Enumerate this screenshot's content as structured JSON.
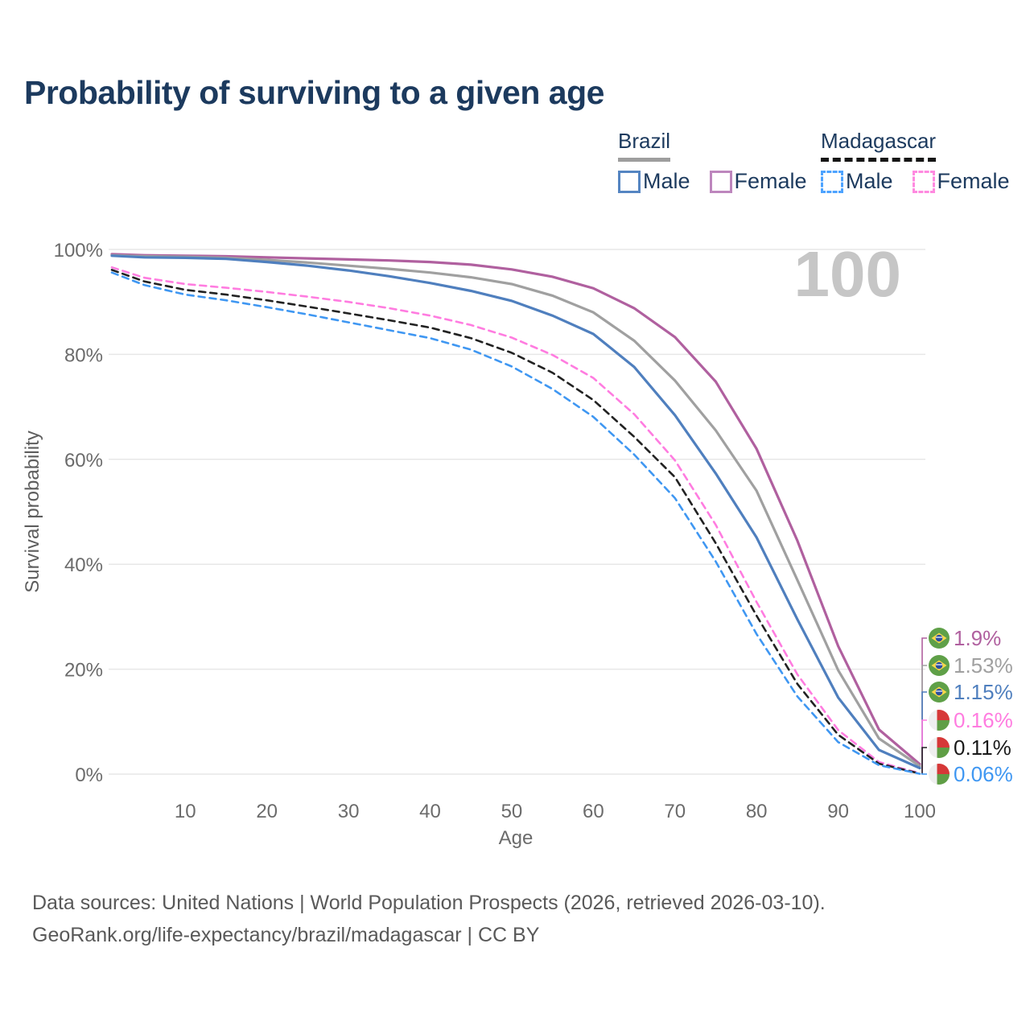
{
  "title": "Probability of surviving to a given age",
  "legend": {
    "groups": [
      {
        "name": "Brazil",
        "style": "solid",
        "underline_color": "#9e9e9e",
        "items": [
          {
            "label": "Male",
            "color": "#5585c2"
          },
          {
            "label": "Female",
            "color": "#bd86bd"
          }
        ]
      },
      {
        "name": "Madagascar",
        "style": "dashed",
        "underline_color": "#161616",
        "items": [
          {
            "label": "Male",
            "color": "#4da3ff"
          },
          {
            "label": "Female",
            "color": "#ff8ae0"
          }
        ]
      }
    ]
  },
  "footer": {
    "line1": "Data sources: United Nations | World Population Prospects (2026, retrieved 2026-03-10).",
    "line2": "GeoRank.org/life-expectancy/brazil/madagascar | CC BY"
  },
  "chart_data": {
    "type": "line",
    "title": "Probability of surviving to a given age",
    "xlabel": "Age",
    "ylabel": "Survival probability",
    "xlim": [
      1,
      100
    ],
    "ylim": [
      0,
      100
    ],
    "grid": "horizontal",
    "age_watermark": "100",
    "x_ticks": [
      10,
      20,
      30,
      40,
      50,
      60,
      70,
      80,
      90,
      100
    ],
    "y_ticks": [
      0,
      20,
      40,
      60,
      80,
      100
    ],
    "y_tick_labels": [
      "0%",
      "20%",
      "40%",
      "60%",
      "80%",
      "100%"
    ],
    "x": [
      1,
      5,
      10,
      15,
      20,
      25,
      30,
      35,
      40,
      45,
      50,
      55,
      60,
      65,
      70,
      75,
      80,
      85,
      90,
      95,
      100
    ],
    "series": [
      {
        "name": "Brazil Female",
        "country": "Brazil",
        "sex": "Female",
        "flag": "brazil",
        "color": "#b0609f",
        "dashed": false,
        "end_label": "1.9%",
        "values": [
          99.1,
          98.9,
          98.8,
          98.7,
          98.5,
          98.3,
          98.1,
          97.9,
          97.6,
          97.1,
          96.2,
          94.8,
          92.6,
          88.8,
          83.3,
          74.8,
          62.0,
          44.5,
          24.4,
          8.5,
          1.9
        ]
      },
      {
        "name": "Brazil Both sexes",
        "country": "Brazil",
        "sex": "Both sexes",
        "flag": "brazil",
        "color": "#a0a0a0",
        "dashed": false,
        "end_label": "1.53%",
        "values": [
          98.9,
          98.7,
          98.6,
          98.4,
          98.0,
          97.5,
          96.9,
          96.3,
          95.6,
          94.7,
          93.4,
          91.2,
          88.0,
          82.6,
          75.0,
          65.5,
          54.0,
          37.0,
          19.8,
          6.8,
          1.53
        ]
      },
      {
        "name": "Brazil Male",
        "country": "Brazil",
        "sex": "Male",
        "flag": "brazil",
        "color": "#4f7fbe",
        "dashed": false,
        "end_label": "1.15%",
        "values": [
          98.8,
          98.5,
          98.4,
          98.2,
          97.6,
          96.9,
          96.0,
          94.9,
          93.6,
          92.1,
          90.2,
          87.4,
          83.9,
          77.6,
          68.4,
          57.3,
          45.1,
          29.5,
          14.6,
          4.6,
          1.15
        ]
      },
      {
        "name": "Madagascar Female",
        "country": "Madagascar",
        "sex": "Female",
        "flag": "madagascar",
        "color": "#ff7ce0",
        "dashed": true,
        "end_label": "0.16%",
        "values": [
          96.6,
          94.6,
          93.4,
          92.7,
          91.9,
          91.0,
          90.0,
          88.8,
          87.4,
          85.6,
          83.2,
          79.9,
          75.5,
          68.6,
          59.8,
          47.5,
          32.8,
          19.0,
          8.4,
          2.3,
          0.16
        ]
      },
      {
        "name": "Madagascar Both sexes",
        "country": "Madagascar",
        "sex": "Both sexes",
        "flag": "madagascar",
        "color": "#222222",
        "dashed": true,
        "end_label": "0.11%",
        "values": [
          96.1,
          93.9,
          92.3,
          91.4,
          90.3,
          89.1,
          87.8,
          86.5,
          85.1,
          83.1,
          80.3,
          76.5,
          71.3,
          64.3,
          56.6,
          44.0,
          30.2,
          17.2,
          7.5,
          2.0,
          0.11
        ]
      },
      {
        "name": "Madagascar Male",
        "country": "Madagascar",
        "sex": "Male",
        "flag": "madagascar",
        "color": "#3f97f2",
        "dashed": true,
        "end_label": "0.06%",
        "values": [
          95.6,
          93.2,
          91.4,
          90.3,
          89.0,
          87.6,
          86.1,
          84.6,
          83.1,
          80.9,
          77.7,
          73.4,
          68.1,
          60.9,
          52.6,
          40.5,
          26.7,
          14.8,
          6.1,
          1.7,
          0.06
        ]
      }
    ],
    "flag_colors": {
      "brazil_green": "#5fa048",
      "brazil_yellow": "#f8d84a",
      "brazil_blue": "#2b4ea0",
      "madagascar_white": "#efefef",
      "madagascar_red": "#d63838",
      "madagascar_green": "#5f9e45"
    }
  }
}
